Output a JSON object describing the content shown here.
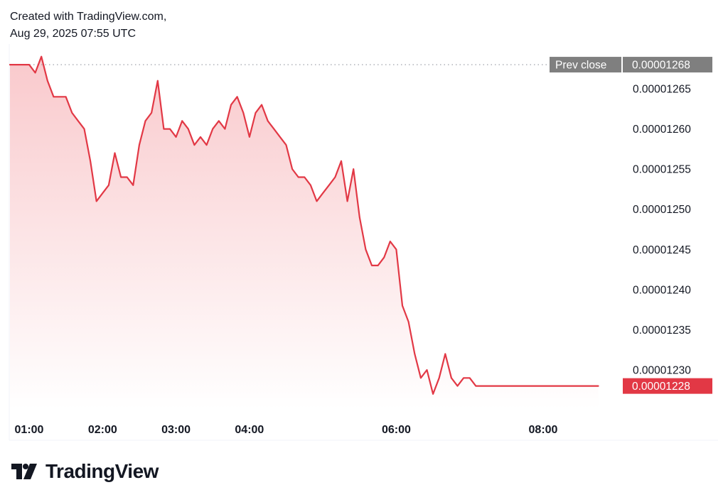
{
  "header": {
    "line1": "Created with TradingView.com,",
    "line2": "Aug 29, 2025 07:55 UTC"
  },
  "brand": {
    "name": "TradingView",
    "logo_icon": "tradingview-logo-icon"
  },
  "colors": {
    "line": "#e23845",
    "fill_top": "#f9c9cc",
    "fill_bottom": "#ffffff",
    "badge_current": "#e23845",
    "badge_prev": "#7f7f7f",
    "prev_close_line": "#9598a1"
  },
  "chart_data": {
    "type": "area",
    "title": "",
    "xlabel": "",
    "ylabel": "",
    "x_ticks": [
      "01:00",
      "02:00",
      "03:00",
      "04:00",
      "06:00",
      "08:00"
    ],
    "y_ticks": [
      "0.00001265",
      "0.00001260",
      "0.00001255",
      "0.00001250",
      "0.00001245",
      "0.00001240",
      "0.00001235",
      "0.00001230"
    ],
    "ylim": [
      1.226e-05,
      1.27e-05
    ],
    "xlim": [
      "00:55",
      "09:40"
    ],
    "grid": false,
    "prev_close": {
      "label": "Prev close",
      "value": "0.00001268"
    },
    "current": {
      "value": "0.00001228"
    },
    "series": [
      {
        "x": [
          "00:55",
          "01:00",
          "01:05",
          "01:10",
          "01:15",
          "01:20",
          "01:25",
          "01:30",
          "01:35",
          "01:40",
          "01:45",
          "01:50",
          "01:55",
          "02:00",
          "02:05",
          "02:10",
          "02:15",
          "02:20",
          "02:25",
          "02:30",
          "02:35",
          "02:40",
          "02:45",
          "02:50",
          "02:55",
          "03:00",
          "03:05",
          "03:10",
          "03:15",
          "03:20",
          "03:25",
          "03:30",
          "03:35",
          "03:40",
          "03:45",
          "03:50",
          "03:55",
          "04:00",
          "04:05",
          "04:10",
          "04:15",
          "04:20",
          "04:25",
          "04:30",
          "04:35",
          "04:40",
          "04:45",
          "04:50",
          "04:55",
          "05:00",
          "05:05",
          "05:10",
          "05:15",
          "05:20",
          "05:25",
          "05:30",
          "05:35",
          "05:40",
          "05:45",
          "05:50",
          "05:55",
          "06:00",
          "06:05",
          "06:10",
          "06:15",
          "06:20",
          "06:25",
          "06:30",
          "06:35",
          "06:40",
          "06:45",
          "06:50",
          "06:55",
          "07:00",
          "07:05",
          "07:10",
          "07:15",
          "07:20",
          "07:25",
          "07:30",
          "07:35",
          "07:40",
          "07:45",
          "07:50",
          "07:55",
          "08:00",
          "08:05",
          "08:10",
          "08:15",
          "08:20",
          "08:25",
          "08:30",
          "08:35",
          "08:40",
          "08:45"
        ],
        "values": [
          1.268e-05,
          1.268e-05,
          1.267e-05,
          1.269e-05,
          1.266e-05,
          1.264e-05,
          1.264e-05,
          1.264e-05,
          1.262e-05,
          1.261e-05,
          1.26e-05,
          1.256e-05,
          1.251e-05,
          1.252e-05,
          1.253e-05,
          1.257e-05,
          1.254e-05,
          1.254e-05,
          1.253e-05,
          1.258e-05,
          1.261e-05,
          1.262e-05,
          1.266e-05,
          1.26e-05,
          1.26e-05,
          1.259e-05,
          1.261e-05,
          1.26e-05,
          1.258e-05,
          1.259e-05,
          1.258e-05,
          1.26e-05,
          1.261e-05,
          1.26e-05,
          1.263e-05,
          1.264e-05,
          1.262e-05,
          1.259e-05,
          1.262e-05,
          1.263e-05,
          1.261e-05,
          1.26e-05,
          1.259e-05,
          1.258e-05,
          1.255e-05,
          1.254e-05,
          1.254e-05,
          1.253e-05,
          1.251e-05,
          1.252e-05,
          1.253e-05,
          1.254e-05,
          1.256e-05,
          1.251e-05,
          1.255e-05,
          1.249e-05,
          1.245e-05,
          1.243e-05,
          1.243e-05,
          1.244e-05,
          1.246e-05,
          1.245e-05,
          1.238e-05,
          1.236e-05,
          1.232e-05,
          1.229e-05,
          1.23e-05,
          1.227e-05,
          1.229e-05,
          1.232e-05,
          1.229e-05,
          1.228e-05,
          1.229e-05,
          1.229e-05,
          1.228e-05,
          1.228e-05,
          1.228e-05,
          1.228e-05,
          1.228e-05,
          1.228e-05,
          1.228e-05,
          1.228e-05,
          1.228e-05,
          1.228e-05,
          1.228e-05,
          1.228e-05,
          1.228e-05,
          1.228e-05,
          1.228e-05,
          1.228e-05,
          1.228e-05,
          1.228e-05,
          1.228e-05,
          1.228e-05,
          1.228e-05
        ]
      }
    ]
  }
}
